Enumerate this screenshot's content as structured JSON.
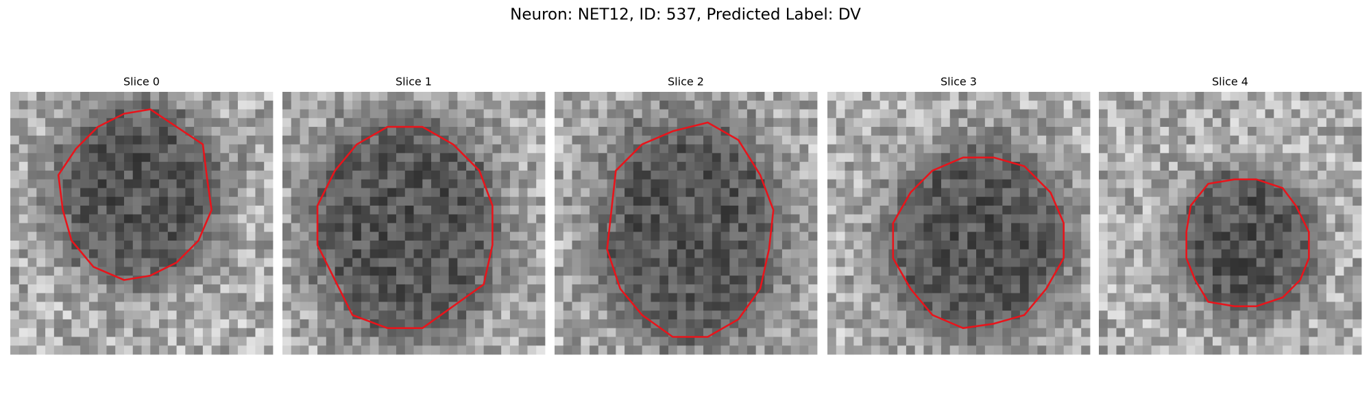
{
  "title": "Neuron: NET12, ID: 537, Predicted Label: DV",
  "panels": [
    {
      "title": "Slice 0"
    },
    {
      "title": "Slice 1"
    },
    {
      "title": "Slice 2"
    },
    {
      "title": "Slice 3"
    },
    {
      "title": "Slice 4"
    }
  ]
}
